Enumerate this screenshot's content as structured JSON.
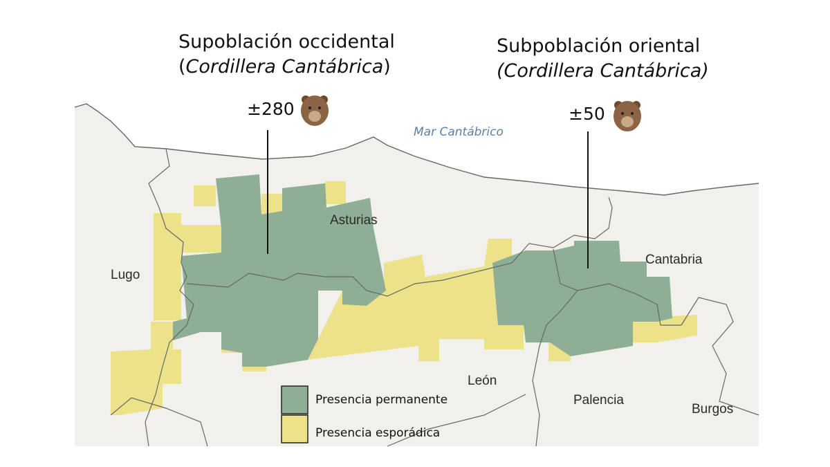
{
  "titles": {
    "west": {
      "line1": "Supoblación occidental",
      "line2": "(Cordillera Cantábrica)"
    },
    "east": {
      "line1": "Subpoblación oriental",
      "line2": "(Cordillera Cantábrica)"
    }
  },
  "counts": {
    "west": "±280",
    "east": "±50"
  },
  "sea_label": "Mar Cantábrico",
  "regions": [
    "Lugo",
    "Asturias",
    "Cantabria",
    "León",
    "Palencia",
    "Burgos"
  ],
  "legend": [
    {
      "label": "Presencia permanente",
      "color": "#8fae96"
    },
    {
      "label": "Presencia esporádica",
      "color": "#ebe28a"
    }
  ],
  "colors": {
    "land": "#f1f0ea",
    "sea": "#ffffff",
    "border": "#666666"
  },
  "icons": [
    "bear-icon",
    "bear-icon"
  ]
}
